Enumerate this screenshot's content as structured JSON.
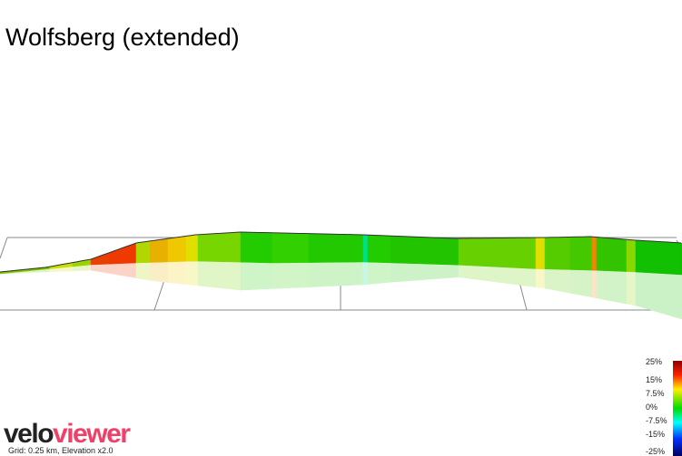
{
  "header": {
    "title": "Wolfsberg (extended)"
  },
  "legend": {
    "labels": [
      "25%",
      "15%",
      "7.5%",
      "0%",
      "-7.5%",
      "-15%",
      "-25%"
    ]
  },
  "footer": {
    "logo_part1": "velo",
    "logo_part2": "viewer",
    "caption": "Grid: 0.25 km, Elevation x2.0"
  }
}
